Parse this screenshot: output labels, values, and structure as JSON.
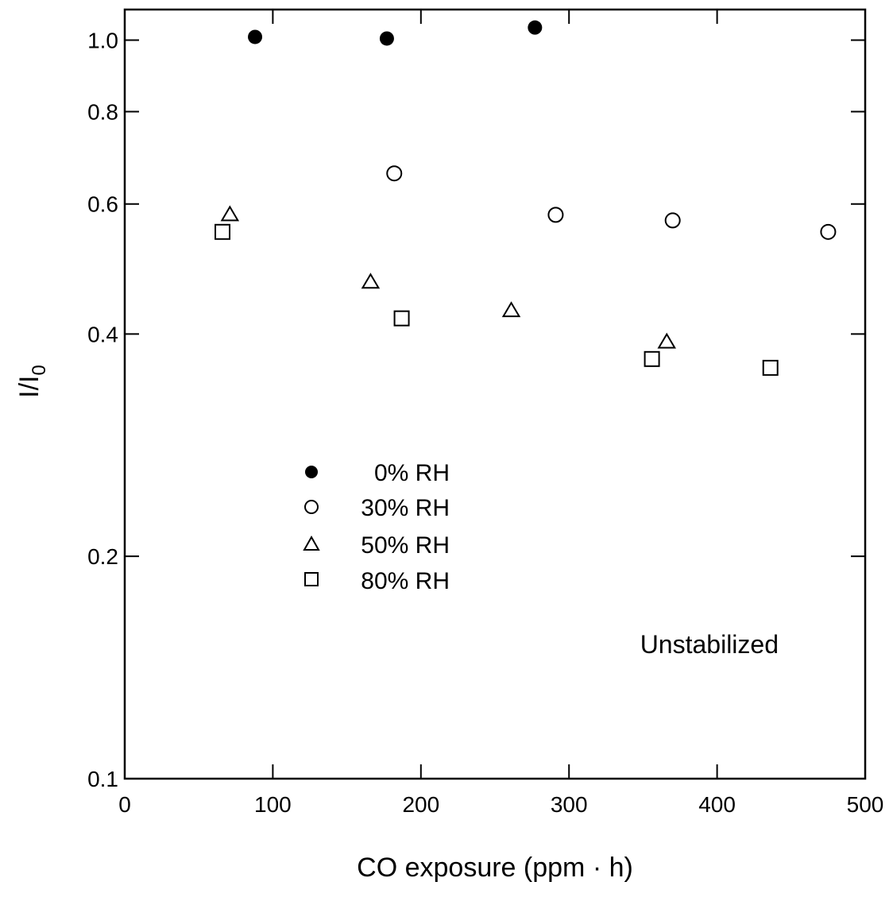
{
  "chart_data": {
    "type": "scatter",
    "title": "",
    "xlabel": "CO exposure (ppm · h)",
    "ylabel_main": "I/I",
    "ylabel_sub": "0",
    "xlim": [
      0,
      500
    ],
    "ylim": [
      0.1,
      1.1
    ],
    "yscale": "log",
    "xticks": [
      0,
      100,
      200,
      300,
      400,
      500
    ],
    "xtick_labels": [
      "0",
      "100",
      "200",
      "300",
      "400",
      "500"
    ],
    "yticks": [
      0.1,
      0.2,
      0.4,
      0.6,
      0.8,
      1.0
    ],
    "ytick_labels": [
      "0.1",
      "0.2",
      "0.4",
      "0.6",
      "0.8",
      "1.0"
    ],
    "grid": false,
    "legend_position": "center-left",
    "series": [
      {
        "name": "0% RH",
        "marker": "filled-circle",
        "x": [
          88,
          177,
          277
        ],
        "y": [
          1.01,
          1.005,
          1.04
        ]
      },
      {
        "name": "30% RH",
        "marker": "open-circle",
        "x": [
          182,
          291,
          370,
          475
        ],
        "y": [
          0.66,
          0.58,
          0.57,
          0.55
        ]
      },
      {
        "name": "50% RH",
        "marker": "open-triangle",
        "x": [
          71,
          166,
          261,
          366
        ],
        "y": [
          0.58,
          0.47,
          0.43,
          0.39
        ]
      },
      {
        "name": "80% RH",
        "marker": "open-square",
        "x": [
          66,
          187,
          356,
          436
        ],
        "y": [
          0.55,
          0.42,
          0.37,
          0.36
        ]
      }
    ],
    "annotations": [
      {
        "text": "Unstabilized"
      }
    ]
  }
}
